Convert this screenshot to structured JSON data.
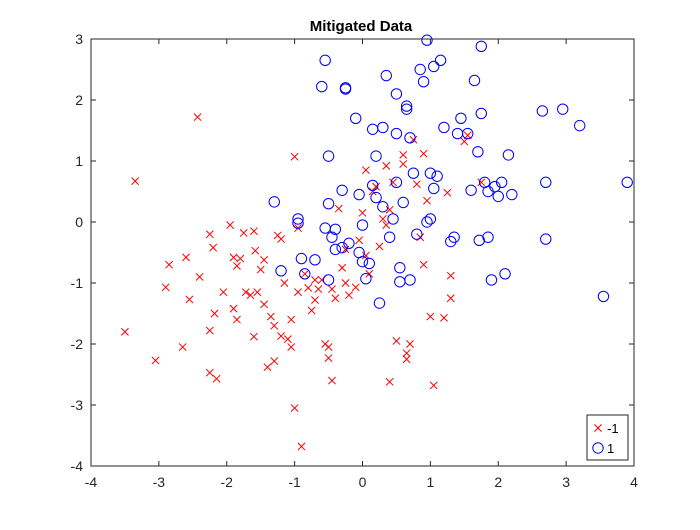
{
  "chart_data": {
    "type": "scatter",
    "title": "Mitigated Data",
    "xlabel": "",
    "ylabel": "",
    "xlim": [
      -4,
      4
    ],
    "ylim": [
      -4,
      3
    ],
    "xticks": [
      -4,
      -3,
      -2,
      -1,
      0,
      1,
      2,
      3,
      4
    ],
    "yticks": [
      -4,
      -3,
      -2,
      -1,
      0,
      1,
      2,
      3
    ],
    "grid": false,
    "legend_position": "bottom-right",
    "series": [
      {
        "name": "-1",
        "marker": "x",
        "color": "#ff0000",
        "points": [
          [
            -3.5,
            -1.8
          ],
          [
            -3.35,
            0.67
          ],
          [
            -3.05,
            -2.27
          ],
          [
            -2.9,
            -1.07
          ],
          [
            -2.85,
            -0.7
          ],
          [
            -2.65,
            -2.05
          ],
          [
            -2.6,
            -0.58
          ],
          [
            -2.55,
            -1.27
          ],
          [
            -2.43,
            1.72
          ],
          [
            -2.4,
            -0.9
          ],
          [
            -2.25,
            -0.2
          ],
          [
            -2.25,
            -1.78
          ],
          [
            -2.25,
            -2.47
          ],
          [
            -2.2,
            -0.42
          ],
          [
            -2.18,
            -1.5
          ],
          [
            -2.15,
            -2.57
          ],
          [
            -2.05,
            -1.15
          ],
          [
            -1.95,
            -0.05
          ],
          [
            -1.9,
            -0.58
          ],
          [
            -1.9,
            -1.42
          ],
          [
            -1.85,
            -0.72
          ],
          [
            -1.85,
            -1.6
          ],
          [
            -1.8,
            -0.6
          ],
          [
            -1.75,
            -0.18
          ],
          [
            -1.72,
            -1.15
          ],
          [
            -1.65,
            -1.2
          ],
          [
            -1.6,
            -0.15
          ],
          [
            -1.6,
            -1.88
          ],
          [
            -1.58,
            -0.47
          ],
          [
            -1.55,
            -1.15
          ],
          [
            -1.5,
            -0.78
          ],
          [
            -1.45,
            -0.62
          ],
          [
            -1.45,
            -1.35
          ],
          [
            -1.4,
            -2.38
          ],
          [
            -1.35,
            -1.55
          ],
          [
            -1.3,
            -1.7
          ],
          [
            -1.3,
            -2.28
          ],
          [
            -1.25,
            -0.22
          ],
          [
            -1.2,
            -0.28
          ],
          [
            -1.2,
            -1.87
          ],
          [
            -1.15,
            -1.0
          ],
          [
            -1.1,
            -1.92
          ],
          [
            -1.05,
            -1.6
          ],
          [
            -1.05,
            -2.05
          ],
          [
            -1.0,
            1.07
          ],
          [
            -1.0,
            -3.05
          ],
          [
            -0.95,
            -0.1
          ],
          [
            -0.95,
            -1.15
          ],
          [
            -0.9,
            -3.68
          ],
          [
            -0.85,
            -0.85
          ],
          [
            -0.8,
            -1.08
          ],
          [
            -0.75,
            -1.45
          ],
          [
            -0.7,
            -0.95
          ],
          [
            -0.7,
            -1.28
          ],
          [
            -0.65,
            -1.1
          ],
          [
            -0.6,
            -0.95
          ],
          [
            -0.55,
            -2.0
          ],
          [
            -0.5,
            -2.05
          ],
          [
            -0.5,
            -2.23
          ],
          [
            -0.45,
            -1.1
          ],
          [
            -0.45,
            -2.6
          ],
          [
            -0.4,
            -1.25
          ],
          [
            -0.35,
            0.22
          ],
          [
            -0.3,
            -0.75
          ],
          [
            -0.25,
            -0.45
          ],
          [
            -0.25,
            -1.0
          ],
          [
            -0.2,
            -1.2
          ],
          [
            -0.1,
            -1.07
          ],
          [
            -0.05,
            -0.3
          ],
          [
            0.0,
            0.15
          ],
          [
            0.05,
            0.85
          ],
          [
            0.05,
            -0.55
          ],
          [
            0.1,
            -0.85
          ],
          [
            0.15,
            0.5
          ],
          [
            0.2,
            0.58
          ],
          [
            0.25,
            -0.4
          ],
          [
            0.3,
            0.05
          ],
          [
            0.35,
            0.92
          ],
          [
            0.35,
            -0.05
          ],
          [
            0.4,
            0.2
          ],
          [
            0.4,
            -2.62
          ],
          [
            0.45,
            0.65
          ],
          [
            0.5,
            -1.95
          ],
          [
            0.6,
            1.1
          ],
          [
            0.6,
            0.95
          ],
          [
            0.65,
            -2.15
          ],
          [
            0.65,
            -2.25
          ],
          [
            0.7,
            -2.0
          ],
          [
            0.75,
            1.35
          ],
          [
            0.8,
            0.62
          ],
          [
            0.85,
            -0.25
          ],
          [
            0.9,
            1.12
          ],
          [
            0.9,
            -0.7
          ],
          [
            0.95,
            0.35
          ],
          [
            1.0,
            -1.55
          ],
          [
            1.05,
            -2.68
          ],
          [
            1.2,
            -1.57
          ],
          [
            1.25,
            0.48
          ],
          [
            1.3,
            -0.88
          ],
          [
            1.3,
            -1.25
          ],
          [
            1.5,
            1.32
          ],
          [
            1.55,
            1.42
          ],
          [
            1.75,
            0.65
          ]
        ]
      },
      {
        "name": "1",
        "marker": "o",
        "color": "#0000ff",
        "points": [
          [
            -1.3,
            0.33
          ],
          [
            -1.2,
            -0.8
          ],
          [
            -0.95,
            0.05
          ],
          [
            -0.95,
            -0.02
          ],
          [
            -0.9,
            -0.6
          ],
          [
            -0.85,
            -0.85
          ],
          [
            -0.7,
            -0.62
          ],
          [
            -0.6,
            2.22
          ],
          [
            -0.55,
            2.65
          ],
          [
            -0.55,
            -0.1
          ],
          [
            -0.5,
            -0.95
          ],
          [
            -0.5,
            0.3
          ],
          [
            -0.5,
            1.08
          ],
          [
            -0.45,
            -0.25
          ],
          [
            -0.4,
            -0.12
          ],
          [
            -0.4,
            -0.45
          ],
          [
            -0.3,
            0.52
          ],
          [
            -0.3,
            -0.42
          ],
          [
            -0.25,
            2.2
          ],
          [
            -0.25,
            2.18
          ],
          [
            -0.2,
            -0.35
          ],
          [
            -0.1,
            1.7
          ],
          [
            -0.05,
            0.45
          ],
          [
            -0.05,
            -0.5
          ],
          [
            0.0,
            -0.05
          ],
          [
            0.0,
            -0.65
          ],
          [
            0.05,
            -0.93
          ],
          [
            0.1,
            -0.68
          ],
          [
            0.15,
            1.52
          ],
          [
            0.15,
            0.6
          ],
          [
            0.2,
            1.08
          ],
          [
            0.2,
            0.4
          ],
          [
            0.25,
            -1.33
          ],
          [
            0.3,
            0.25
          ],
          [
            0.3,
            1.55
          ],
          [
            0.35,
            2.4
          ],
          [
            0.4,
            -0.25
          ],
          [
            0.45,
            0.05
          ],
          [
            0.5,
            2.1
          ],
          [
            0.5,
            0.65
          ],
          [
            0.5,
            1.45
          ],
          [
            0.55,
            -0.75
          ],
          [
            0.55,
            -0.98
          ],
          [
            0.6,
            0.32
          ],
          [
            0.65,
            1.9
          ],
          [
            0.65,
            1.85
          ],
          [
            0.7,
            1.38
          ],
          [
            0.7,
            -0.95
          ],
          [
            0.75,
            0.8
          ],
          [
            0.8,
            -0.2
          ],
          [
            0.85,
            2.5
          ],
          [
            0.9,
            2.3
          ],
          [
            0.95,
            2.98
          ],
          [
            0.95,
            0.0
          ],
          [
            1.0,
            0.05
          ],
          [
            1.0,
            0.8
          ],
          [
            1.05,
            2.55
          ],
          [
            1.05,
            0.55
          ],
          [
            1.1,
            0.75
          ],
          [
            1.15,
            2.65
          ],
          [
            1.2,
            1.55
          ],
          [
            1.3,
            -0.32
          ],
          [
            1.35,
            -0.25
          ],
          [
            1.4,
            1.45
          ],
          [
            1.45,
            1.7
          ],
          [
            1.55,
            1.45
          ],
          [
            1.6,
            0.52
          ],
          [
            1.65,
            2.32
          ],
          [
            1.7,
            1.15
          ],
          [
            1.72,
            -0.3
          ],
          [
            1.75,
            1.78
          ],
          [
            1.75,
            2.88
          ],
          [
            1.8,
            0.65
          ],
          [
            1.85,
            -0.25
          ],
          [
            1.85,
            0.5
          ],
          [
            1.9,
            -0.95
          ],
          [
            1.95,
            0.58
          ],
          [
            2.0,
            0.42
          ],
          [
            2.05,
            0.65
          ],
          [
            2.1,
            -0.85
          ],
          [
            2.15,
            1.1
          ],
          [
            2.2,
            0.45
          ],
          [
            2.65,
            1.82
          ],
          [
            2.7,
            0.65
          ],
          [
            2.7,
            -0.28
          ],
          [
            2.95,
            1.85
          ],
          [
            3.2,
            1.58
          ],
          [
            3.55,
            -1.22
          ],
          [
            3.9,
            0.65
          ]
        ]
      }
    ]
  }
}
